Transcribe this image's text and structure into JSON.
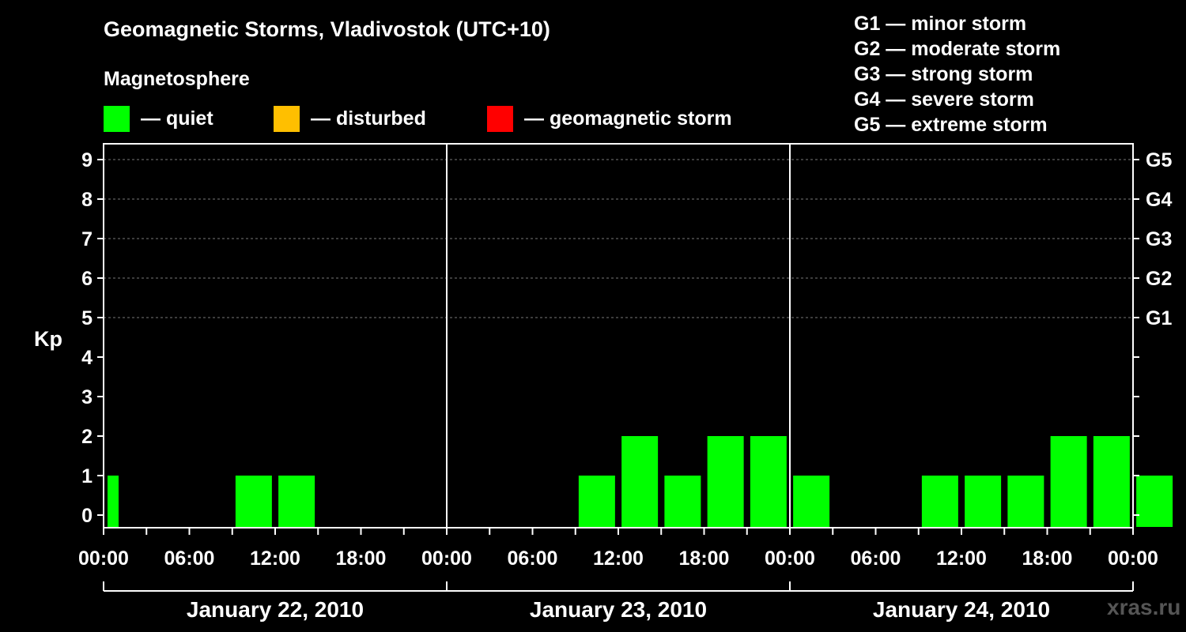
{
  "header": {
    "title": "Geomagnetic Storms, Vladivostok (UTC+10)",
    "subtitle": "Magnetosphere"
  },
  "legend": [
    {
      "label": "— quiet",
      "color": "#00ff00"
    },
    {
      "label": "— disturbed",
      "color": "#ffbf00"
    },
    {
      "label": "— geomagnetic storm",
      "color": "#ff0000"
    }
  ],
  "storm_scale": [
    "G1 — minor storm",
    "G2 — moderate storm",
    "G3 — strong storm",
    "G4 — severe storm",
    "G5 — extreme storm"
  ],
  "watermark": "xras.ru",
  "chart_data": {
    "type": "bar",
    "title": "Geomagnetic Storms, Vladivostok (UTC+10)",
    "ylabel": "Kp",
    "ylim": [
      0,
      9
    ],
    "y_ticks": [
      "0",
      "1",
      "2",
      "3",
      "4",
      "5",
      "6",
      "7",
      "8",
      "9"
    ],
    "right_ticks": [
      {
        "kp": 5,
        "label": "G1"
      },
      {
        "kp": 6,
        "label": "G2"
      },
      {
        "kp": 7,
        "label": "G3"
      },
      {
        "kp": 8,
        "label": "G4"
      },
      {
        "kp": 9,
        "label": "G5"
      }
    ],
    "x_tick_labels": [
      "00:00",
      "06:00",
      "12:00",
      "18:00",
      "00:00",
      "06:00",
      "12:00",
      "18:00",
      "00:00",
      "06:00",
      "12:00",
      "18:00",
      "00:00"
    ],
    "days": [
      "January 22, 2010",
      "January 23, 2010",
      "January 24, 2010"
    ],
    "grid": "dashed horizontal at Kp 5–9",
    "series": [
      {
        "values": [
          1,
          0,
          0,
          0,
          1,
          1,
          0,
          0,
          0,
          0,
          0,
          0,
          1,
          2,
          1,
          2,
          2,
          1,
          0,
          0,
          1,
          1,
          1,
          2,
          2,
          1
        ],
        "colors": [
          "#00ff00",
          "#00ff00",
          "#00ff00",
          "#00ff00",
          "#00ff00",
          "#00ff00",
          "#00ff00",
          "#00ff00",
          "#00ff00",
          "#00ff00",
          "#00ff00",
          "#00ff00",
          "#00ff00",
          "#00ff00",
          "#00ff00",
          "#00ff00",
          "#00ff00",
          "#00ff00",
          "#00ff00",
          "#00ff00",
          "#00ff00",
          "#00ff00",
          "#00ff00",
          "#00ff00",
          "#00ff00",
          "#00ff00"
        ]
      }
    ]
  }
}
